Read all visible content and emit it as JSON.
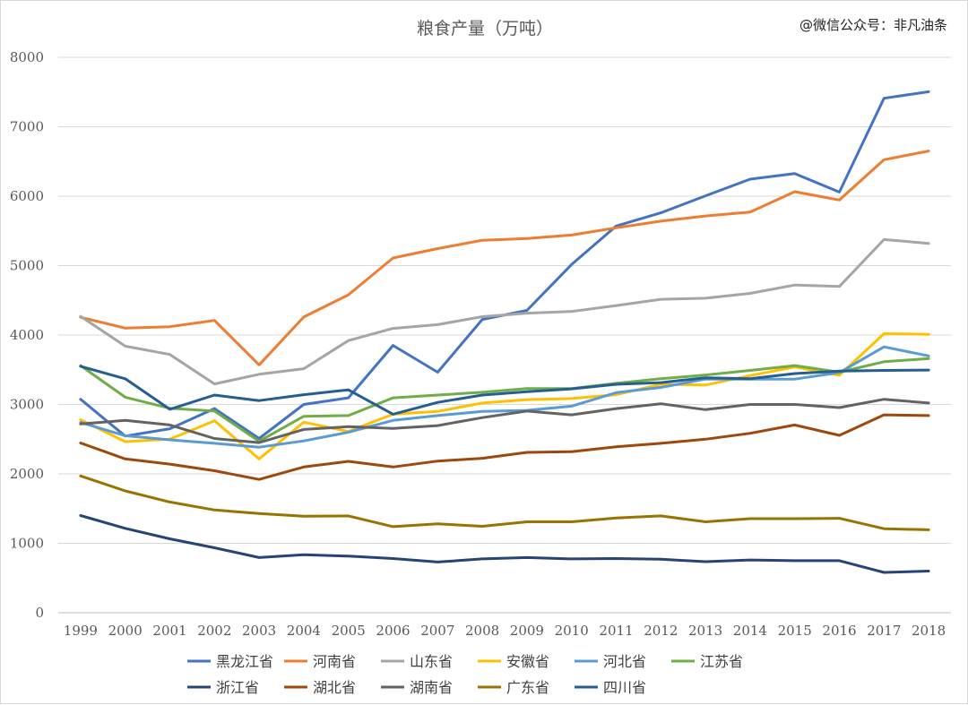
{
  "chart_data": {
    "type": "line",
    "title": "粮食产量（万吨）",
    "watermark": "@微信公众号：非凡油条",
    "xlabel": "",
    "ylabel": "",
    "ylim": [
      0,
      8000
    ],
    "yticks": [
      0,
      1000,
      2000,
      3000,
      4000,
      5000,
      6000,
      7000,
      8000
    ],
    "grid": "horizontal",
    "legend_position": "bottom",
    "categories": [
      "1999",
      "2000",
      "2001",
      "2002",
      "2003",
      "2004",
      "2005",
      "2006",
      "2007",
      "2008",
      "2009",
      "2010",
      "2011",
      "2012",
      "2013",
      "2014",
      "2015",
      "2016",
      "2017",
      "2018"
    ],
    "series": [
      {
        "name": "黑龙江省",
        "color": "#4472C4",
        "values": [
          3075,
          2545,
          2650,
          2940,
          2510,
          3000,
          3095,
          3850,
          3465,
          4225,
          4355,
          5015,
          5570,
          5760,
          6005,
          6245,
          6325,
          6060,
          7410,
          7505
        ]
      },
      {
        "name": "河南省",
        "color": "#ED7D31",
        "values": [
          4255,
          4100,
          4120,
          4210,
          3570,
          4260,
          4580,
          5110,
          5245,
          5365,
          5390,
          5440,
          5545,
          5640,
          5715,
          5770,
          6065,
          5945,
          6525,
          6650
        ]
      },
      {
        "name": "山东省",
        "color": "#A5A5A5",
        "values": [
          4270,
          3840,
          3720,
          3295,
          3435,
          3515,
          3920,
          4095,
          4150,
          4265,
          4315,
          4340,
          4425,
          4515,
          4530,
          4600,
          4720,
          4700,
          5375,
          5320
        ]
      },
      {
        "name": "安徽省",
        "color": "#FFC000",
        "values": [
          2780,
          2465,
          2500,
          2765,
          2215,
          2745,
          2610,
          2860,
          2900,
          3020,
          3070,
          3085,
          3140,
          3290,
          3280,
          3415,
          3540,
          3420,
          4020,
          4010
        ]
      },
      {
        "name": "河北省",
        "color": "#5B9BD5",
        "values": [
          2740,
          2550,
          2490,
          2440,
          2385,
          2475,
          2600,
          2770,
          2840,
          2900,
          2915,
          2975,
          3170,
          3245,
          3365,
          3365,
          3365,
          3460,
          3830,
          3700
        ]
      },
      {
        "name": "江苏省",
        "color": "#70AD47",
        "values": [
          3560,
          3105,
          2945,
          2905,
          2470,
          2830,
          2840,
          3095,
          3135,
          3175,
          3230,
          3230,
          3305,
          3370,
          3425,
          3490,
          3560,
          3465,
          3615,
          3660
        ]
      },
      {
        "name": "浙江省",
        "color": "#264478",
        "values": [
          1400,
          1215,
          1065,
          935,
          795,
          835,
          815,
          780,
          730,
          775,
          795,
          775,
          780,
          770,
          735,
          760,
          750,
          750,
          580,
          600
        ]
      },
      {
        "name": "湖北省",
        "color": "#9E480E",
        "values": [
          2445,
          2215,
          2140,
          2045,
          1920,
          2100,
          2180,
          2100,
          2185,
          2225,
          2310,
          2320,
          2390,
          2440,
          2500,
          2585,
          2705,
          2555,
          2850,
          2840
        ]
      },
      {
        "name": "湖南省",
        "color": "#636363",
        "values": [
          2720,
          2770,
          2705,
          2510,
          2450,
          2640,
          2680,
          2655,
          2695,
          2810,
          2905,
          2850,
          2940,
          3010,
          2925,
          3000,
          3000,
          2955,
          3075,
          3020
        ]
      },
      {
        "name": "广东省",
        "color": "#997300",
        "values": [
          1970,
          1755,
          1595,
          1480,
          1430,
          1390,
          1395,
          1240,
          1280,
          1245,
          1310,
          1310,
          1365,
          1395,
          1310,
          1355,
          1355,
          1360,
          1210,
          1195
        ]
      },
      {
        "name": "四川省",
        "color": "#255E91",
        "values": [
          3550,
          3370,
          2930,
          3135,
          3055,
          3140,
          3210,
          2860,
          3030,
          3135,
          3185,
          3225,
          3290,
          3315,
          3385,
          3370,
          3445,
          3480,
          3490,
          3495
        ]
      }
    ]
  }
}
